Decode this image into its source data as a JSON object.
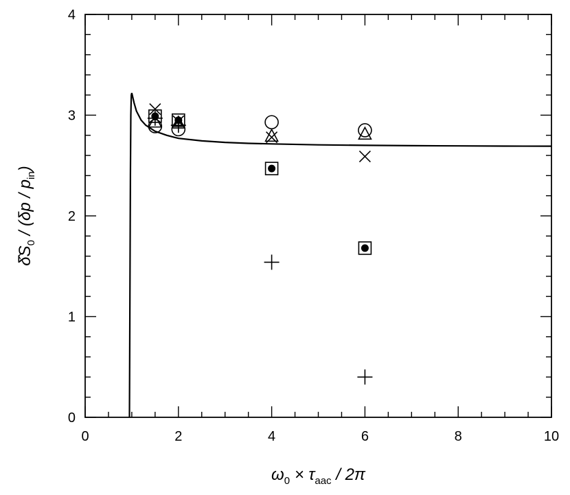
{
  "chart_data": {
    "type": "scatter",
    "xlim": [
      0,
      10
    ],
    "ylim": [
      0,
      4
    ],
    "x_ticks": [
      0,
      2,
      4,
      6,
      8,
      10
    ],
    "y_ticks": [
      0,
      1,
      2,
      3,
      4
    ],
    "x_minor_step": 0.5,
    "y_minor_step": 0.2,
    "grid": false,
    "xlabel": {
      "parts": [
        "ω",
        "0",
        " × ",
        "τ",
        "aac",
        " / 2π"
      ]
    },
    "ylabel": {
      "parts": [
        "δ̂S",
        "0",
        " / (δp / p",
        "in",
        ")"
      ]
    },
    "curve": {
      "style": "solid",
      "x": [
        0.95,
        0.96,
        0.97,
        0.98,
        0.99,
        1.0,
        1.05,
        1.1,
        1.2,
        1.3,
        1.5,
        1.75,
        2.0,
        2.5,
        3.0,
        3.5,
        4.0,
        5.0,
        6.0,
        7.0,
        8.0,
        9.0,
        10.0
      ],
      "y": [
        0.0,
        1.2,
        2.4,
        3.0,
        3.2,
        3.22,
        3.12,
        3.04,
        2.95,
        2.9,
        2.84,
        2.8,
        2.77,
        2.745,
        2.73,
        2.72,
        2.715,
        2.705,
        2.7,
        2.697,
        2.695,
        2.693,
        2.692
      ]
    },
    "series": [
      {
        "marker": "circle-open",
        "x": [
          1.5,
          2.0,
          4.0,
          6.0
        ],
        "y": [
          2.89,
          2.86,
          2.93,
          2.85
        ]
      },
      {
        "marker": "triangle-open",
        "x": [
          1.5,
          2.0,
          4.0,
          6.0
        ],
        "y": [
          2.93,
          2.92,
          2.79,
          2.81
        ]
      },
      {
        "marker": "cross-x",
        "x": [
          1.5,
          2.0,
          4.0,
          6.0
        ],
        "y": [
          3.06,
          2.94,
          2.78,
          2.59
        ]
      },
      {
        "marker": "plus",
        "x": [
          1.5,
          2.0,
          4.0,
          6.0
        ],
        "y": [
          2.97,
          2.9,
          1.54,
          0.4
        ]
      },
      {
        "marker": "square-open",
        "x": [
          1.5,
          2.0,
          4.0,
          6.0
        ],
        "y": [
          2.99,
          2.95,
          2.47,
          1.68
        ]
      },
      {
        "marker": "circle-filled",
        "x": [
          1.5,
          2.0,
          4.0,
          6.0
        ],
        "y": [
          2.99,
          2.95,
          2.47,
          1.68
        ]
      }
    ]
  }
}
